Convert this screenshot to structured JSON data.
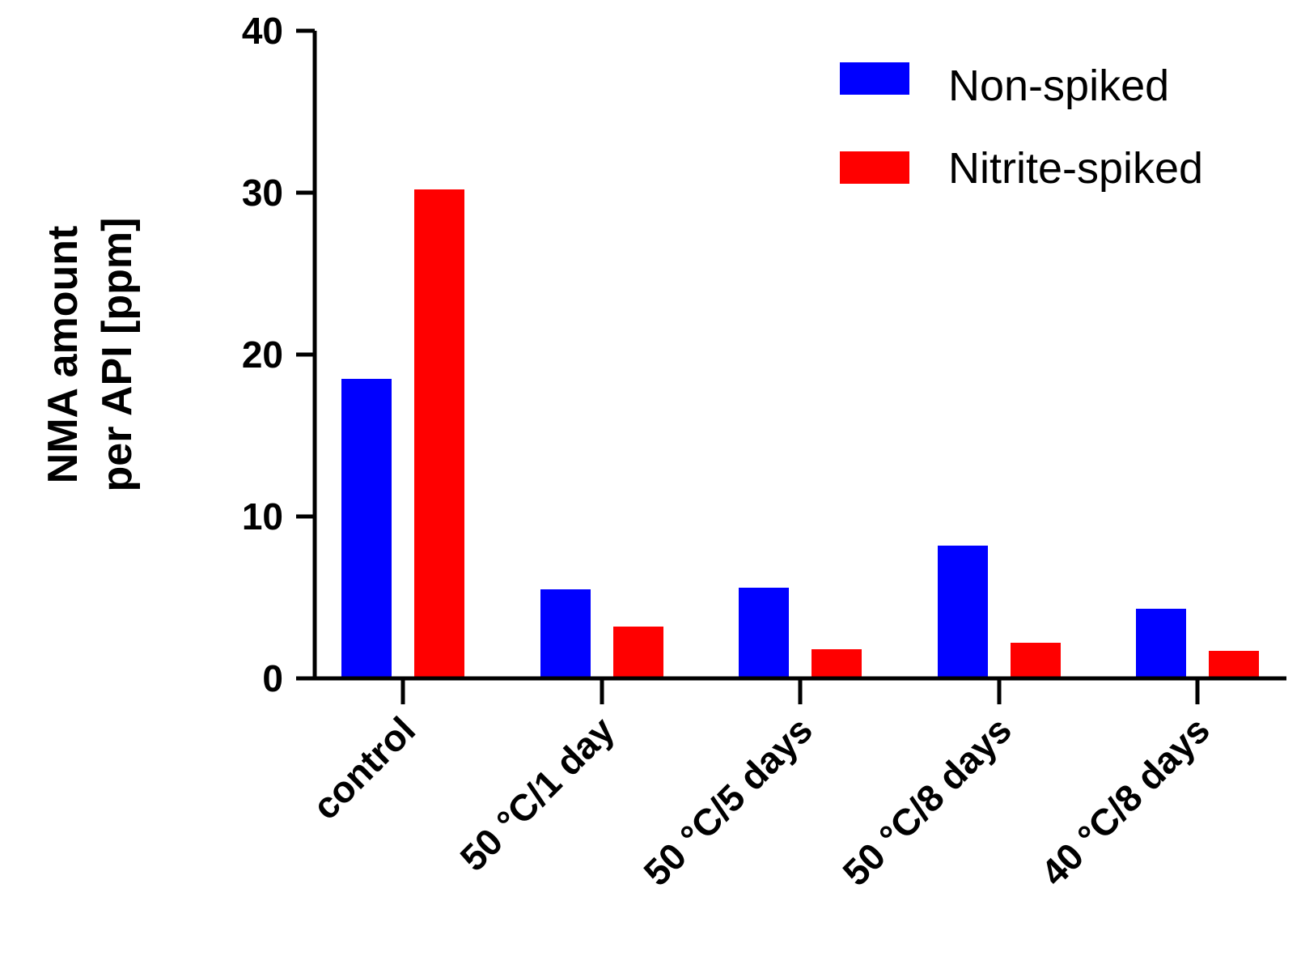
{
  "chart_data": {
    "type": "bar",
    "title": "",
    "xlabel": "",
    "ylabel_lines": [
      "NMA amount",
      "per API [ppm]"
    ],
    "categories": [
      "control",
      "50 °C/1 day",
      "50 °C/5 days",
      "50 °C/8 days",
      "40 °C/8 days"
    ],
    "series": [
      {
        "name": "Non-spiked",
        "color": "#0000ff",
        "values": [
          18.5,
          5.5,
          5.6,
          8.2,
          4.3
        ]
      },
      {
        "name": "Nitrite-spiked",
        "color": "#ff0000",
        "values": [
          30.2,
          3.2,
          1.8,
          2.2,
          1.7
        ]
      }
    ],
    "ylim": [
      0,
      40
    ],
    "yticks": [
      0,
      10,
      20,
      30,
      40
    ],
    "ytick_labels": [
      "0",
      "10",
      "20",
      "30",
      "40"
    ],
    "grid": false,
    "legend_position": "top-right"
  }
}
